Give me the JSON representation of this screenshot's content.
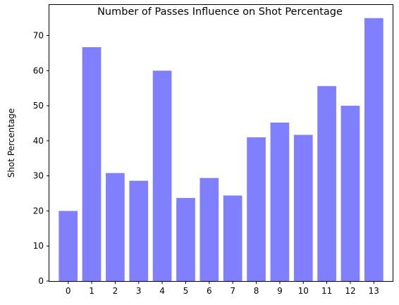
{
  "chart_data": {
    "type": "bar",
    "title": "Number of Passes Influence on Shot Percentage",
    "xlabel": "",
    "ylabel": "Shot Percentage",
    "categories": [
      "0",
      "1",
      "2",
      "3",
      "4",
      "5",
      "6",
      "7",
      "8",
      "9",
      "10",
      "11",
      "12",
      "13"
    ],
    "values": [
      20.0,
      66.7,
      30.8,
      28.6,
      60.0,
      23.7,
      29.4,
      24.4,
      41.0,
      45.2,
      41.7,
      55.6,
      50.0,
      75.0
    ],
    "ylim": [
      0,
      78.75
    ],
    "yticks": [
      0,
      10,
      20,
      30,
      40,
      50,
      60,
      70
    ],
    "bar_color": "#8080ff",
    "grid": false,
    "legend": "none"
  }
}
